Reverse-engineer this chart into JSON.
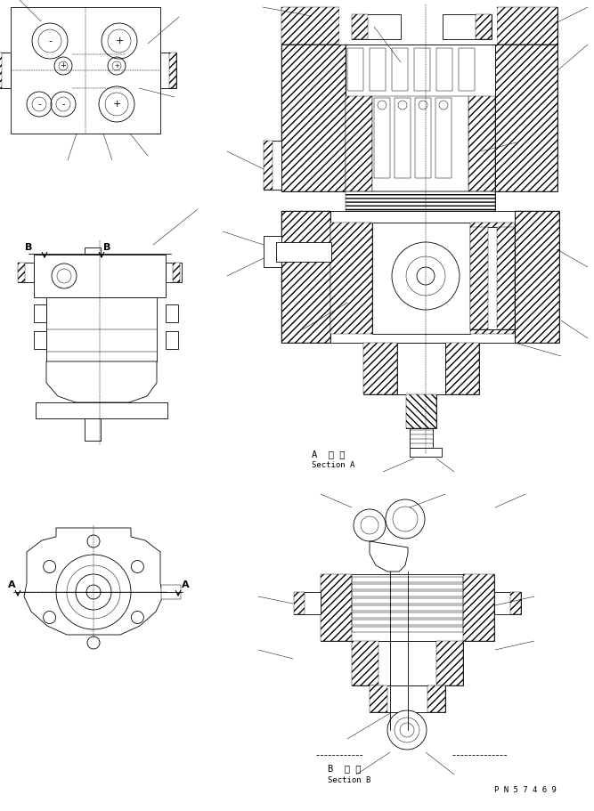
{
  "bg_color": "#ffffff",
  "line_color": "#000000",
  "fig_width": 6.67,
  "fig_height": 9.11,
  "dpi": 100,
  "section_a_label_jp": "A  断 面",
  "section_a_label_en": "Section A",
  "section_b_label_jp": "B  断 面",
  "section_b_label_en": "Section B",
  "part_number": "P N 5 7 4 6 9",
  "font_size_label": 6.5,
  "font_size_section": 7.5,
  "font_size_pn": 6.5,
  "lw_main": 0.6,
  "lw_thin": 0.35,
  "lw_thick": 0.9,
  "lw_hatch": 0.3
}
